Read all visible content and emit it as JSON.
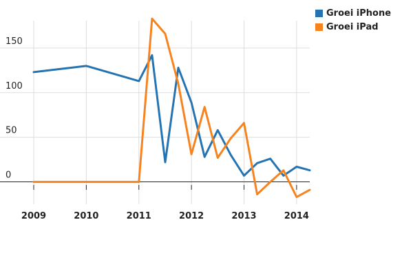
{
  "chart_data": {
    "type": "line",
    "xlim": [
      2009,
      2014.25
    ],
    "ylim": [
      -25,
      190
    ],
    "x_ticks": [
      "2009",
      "2010",
      "2011",
      "2012",
      "2013",
      "2014"
    ],
    "y_ticks": [
      "0",
      "50",
      "100",
      "150"
    ],
    "grid": true,
    "legend_position": "top-right",
    "series": [
      {
        "name": "Groei iPhone",
        "color": "#2573b0",
        "x": [
          2009,
          2010,
          2011,
          2011.25,
          2011.5,
          2011.75,
          2012,
          2012.25,
          2012.5,
          2012.75,
          2013,
          2013.25,
          2013.5,
          2013.75,
          2014,
          2014.25
        ],
        "y": [
          123,
          130,
          113,
          142,
          22,
          128,
          89,
          28,
          58,
          30,
          7,
          21,
          26,
          7,
          17,
          13
        ]
      },
      {
        "name": "Groei iPad",
        "color": "#f7831f",
        "x": [
          2009,
          2010,
          2011,
          2011.25,
          2011.5,
          2011.75,
          2012,
          2012.25,
          2012.5,
          2012.75,
          2013,
          2013.25,
          2013.5,
          2013.75,
          2014,
          2014.25
        ],
        "y": [
          0,
          0,
          0,
          183,
          166,
          110,
          31,
          84,
          27,
          49,
          66,
          -14,
          0,
          13,
          -17,
          -9
        ]
      }
    ]
  }
}
